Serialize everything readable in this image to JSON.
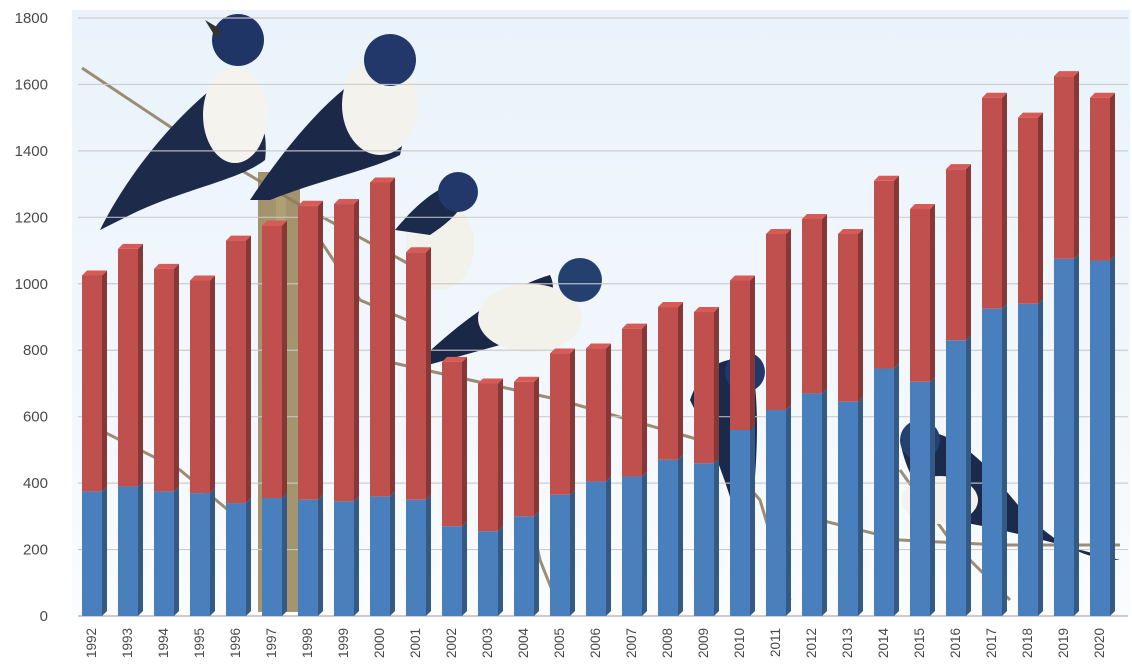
{
  "chart_data": {
    "type": "bar",
    "stacked": true,
    "title": "",
    "xlabel": "",
    "ylabel": "",
    "ylim": [
      0,
      1800
    ],
    "yticks": [
      0,
      200,
      400,
      600,
      800,
      1000,
      1200,
      1400,
      1600,
      1800
    ],
    "grid": true,
    "legend": "none",
    "background_image": "tree swallows perched on a fence post and branches",
    "categories": [
      "1992",
      "1993",
      "1994",
      "1995",
      "1996",
      "1997",
      "1998",
      "1999",
      "2000",
      "2001",
      "2002",
      "2003",
      "2004",
      "2005",
      "2006",
      "2007",
      "2008",
      "2009",
      "2010",
      "2011",
      "2012",
      "2013",
      "2014",
      "2015",
      "2016",
      "2017",
      "2018",
      "2019",
      "2020"
    ],
    "series": [
      {
        "color": "#4a7fbd",
        "values": [
          375,
          390,
          375,
          370,
          340,
          355,
          350,
          345,
          360,
          350,
          270,
          255,
          300,
          365,
          405,
          420,
          470,
          460,
          560,
          620,
          670,
          645,
          745,
          705,
          830,
          925,
          940,
          1075,
          1070
        ]
      },
      {
        "color": "#c0504d",
        "values": [
          650,
          715,
          670,
          640,
          790,
          820,
          885,
          895,
          945,
          745,
          495,
          445,
          405,
          425,
          400,
          445,
          460,
          455,
          450,
          530,
          525,
          505,
          565,
          520,
          515,
          635,
          560,
          550,
          490
        ]
      }
    ]
  }
}
